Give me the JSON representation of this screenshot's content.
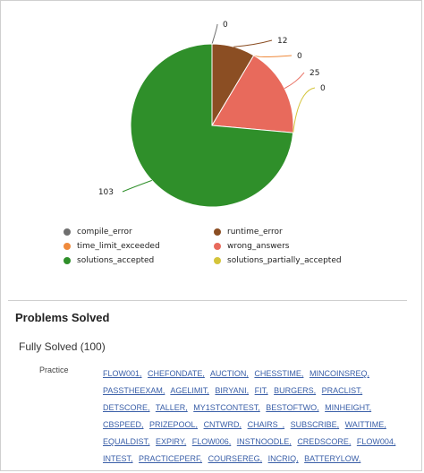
{
  "colors": {
    "compile_error": "#6f6f6f",
    "runtime_error": "#8b4e23",
    "time_limit_exceeded": "#ef8a3c",
    "wrong_answers": "#e86a5c",
    "solutions_accepted": "#2f8f2a",
    "solutions_partially_accepted": "#d4c43a",
    "link": "#3a5fa8"
  },
  "chart_data": {
    "type": "pie",
    "slices": [
      {
        "name": "compile_error",
        "value": 0,
        "label": "0"
      },
      {
        "name": "runtime_error",
        "value": 12,
        "label": "12"
      },
      {
        "name": "time_limit_exceeded",
        "value": 0,
        "label": "0"
      },
      {
        "name": "wrong_answers",
        "value": 25,
        "label": "25"
      },
      {
        "name": "solutions_partially_accepted",
        "value": 0,
        "label": "0"
      },
      {
        "name": "solutions_accepted",
        "value": 103,
        "label": "103"
      }
    ],
    "legend": [
      "compile_error",
      "runtime_error",
      "time_limit_exceeded",
      "wrong_answers",
      "solutions_accepted",
      "solutions_partially_accepted"
    ],
    "legend_position": "bottom"
  },
  "problems_solved": {
    "title": "Problems Solved",
    "fully_solved_label": "Fully Solved (100)",
    "practice_label": "Practice",
    "problems": [
      "FLOW001",
      "CHEFONDATE",
      "AUCTION",
      "CHESSTIME",
      "MINCOINSREQ",
      "PASSTHEEXAM",
      "AGELIMIT",
      "BIRYANI",
      "FIT",
      "BURGERS",
      "PRACLIST",
      "DETSCORE",
      "TALLER",
      "MY1STCONTEST",
      "BESTOFTWO",
      "MINHEIGHT",
      "CBSPEED",
      "PRIZEPOOL",
      "CNTWRD",
      "CHAIRS_",
      "SUBSCRIBE",
      "WAITTIME",
      "EQUALDIST",
      "EXPIRY",
      "FLOW006",
      "INSTNOODLE",
      "CREDSCORE",
      "FLOW004",
      "INTEST",
      "PRACTICEPERF",
      "COURSEREG",
      "INCRIQ",
      "BATTERYLOW"
    ]
  }
}
